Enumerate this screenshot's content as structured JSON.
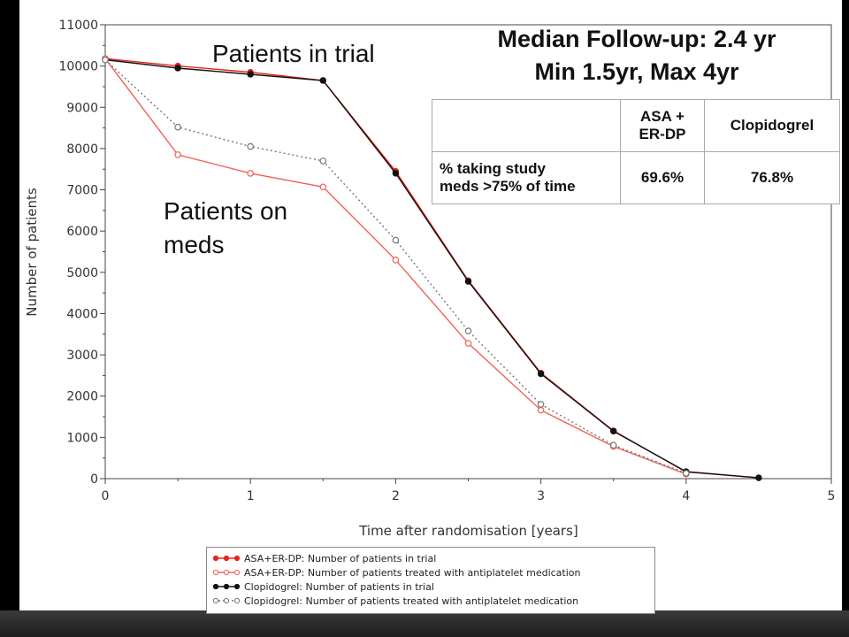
{
  "chart_data": {
    "type": "line",
    "title": "",
    "xlabel": "Time after randomisation [years]",
    "ylabel": "Number of patients",
    "xlim": [
      0,
      5
    ],
    "ylim": [
      0,
      11000
    ],
    "x_ticks": [
      "0",
      "1",
      "2",
      "3",
      "4",
      "5"
    ],
    "y_ticks": [
      "0",
      "1000",
      "2000",
      "3000",
      "4000",
      "5000",
      "6000",
      "7000",
      "8000",
      "9000",
      "10000",
      "11000"
    ],
    "grid": false,
    "legend_position": "bottom",
    "series": [
      {
        "name": "ASA+ER-DP: Number of patients in trial",
        "color": "#e8231c",
        "marker": "filled",
        "dash": "solid",
        "x": [
          0,
          0.5,
          1,
          1.5,
          2,
          2.5,
          3,
          3.5,
          4,
          4.5
        ],
        "values": [
          10180,
          10000,
          9850,
          9650,
          7450,
          4800,
          2560,
          1160,
          160,
          20
        ]
      },
      {
        "name": "ASA+ER-DP: Number of patients treated with antiplatelet medication",
        "color": "#f26058",
        "marker": "open",
        "dash": "solid",
        "x": [
          0,
          0.5,
          1,
          1.5,
          2,
          2.5,
          3,
          3.5,
          4
        ],
        "values": [
          10180,
          7850,
          7400,
          7070,
          5300,
          3280,
          1660,
          780,
          110
        ]
      },
      {
        "name": "Clopidogrel: Number of patients in trial",
        "color": "#111111",
        "marker": "filled",
        "dash": "solid",
        "x": [
          0,
          0.5,
          1,
          1.5,
          2,
          2.5,
          3,
          3.5,
          4,
          4.5
        ],
        "values": [
          10150,
          9950,
          9800,
          9650,
          7400,
          4780,
          2540,
          1150,
          170,
          20
        ]
      },
      {
        "name": "Clopidogrel: Number of patients treated with antiplatelet medication",
        "color": "#777777",
        "marker": "open",
        "dash": "dotted",
        "x": [
          0,
          0.5,
          1,
          1.5,
          2,
          2.5,
          3,
          3.5,
          4
        ],
        "values": [
          10150,
          8520,
          8050,
          7700,
          5780,
          3580,
          1800,
          810,
          130
        ]
      }
    ],
    "annotations": {
      "in_trial": "Patients in trial",
      "on_meds_line1": "Patients on",
      "on_meds_line2": "meds",
      "follow_up_line1": "Median Follow-up: 2.4 yr",
      "follow_up_line2": "Min 1.5yr, Max 4yr"
    }
  },
  "table": {
    "header_col1": "ASA +",
    "header_col1_line2": "ER-DP",
    "header_col2": "Clopidogrel",
    "row_label_line1": "% taking study",
    "row_label_line2": "meds >75% of time",
    "value_col1": "69.6%",
    "value_col2": "76.8%"
  }
}
